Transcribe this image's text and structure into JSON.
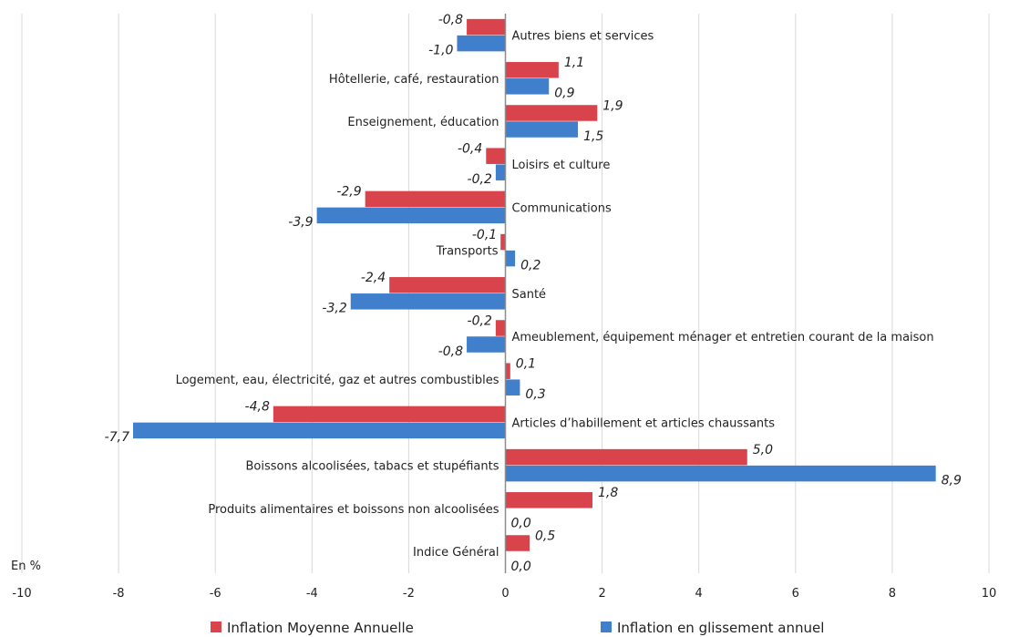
{
  "chart_data": {
    "type": "bar",
    "orientation": "horizontal",
    "unit_label": "En %",
    "xlim": [
      -10,
      10
    ],
    "x_ticks": [
      -10,
      -8,
      -6,
      -4,
      -2,
      0,
      2,
      4,
      6,
      8,
      10
    ],
    "grid": "vertical",
    "legend_position": "bottom",
    "categories": [
      "Autres biens et services",
      "Hôtellerie, café, restauration",
      "Enseignement, éducation",
      "Loisirs et culture",
      "Communications",
      "Transports",
      "Santé",
      "Ameublement, équipement ménager et entretien courant de la maison",
      "Logement, eau, électricité, gaz et autres combustibles",
      "Articles d’habillement et articles chaussants",
      "Boissons alcoolisées, tabacs et stupéfiants",
      "Produits alimentaires et boissons non alcoolisées",
      "Indice Général"
    ],
    "series": [
      {
        "name": "Inflation Moyenne Annuelle",
        "color": "#d9434b",
        "values": [
          -0.8,
          1.1,
          1.9,
          -0.4,
          -2.9,
          -0.1,
          -2.4,
          -0.2,
          0.1,
          -4.8,
          5.0,
          1.8,
          0.5
        ],
        "labels": [
          "-0,8",
          "1,1",
          "1,9",
          "-0,4",
          "-2,9",
          "-0,1",
          "-2,4",
          "-0,2",
          "0,1",
          "-4,8",
          "5,0",
          "1,8",
          "0,5"
        ]
      },
      {
        "name": "Inflation en glissement annuel",
        "color": "#3f7fcb",
        "values": [
          -1.0,
          0.9,
          1.5,
          -0.2,
          -3.9,
          0.2,
          -3.2,
          -0.8,
          0.3,
          -7.7,
          8.9,
          0.0,
          0.0
        ],
        "labels": [
          "-1,0",
          "0,9",
          "1,5",
          "-0,2",
          "-3,9",
          "0,2",
          "-3,2",
          "-0,8",
          "0,3",
          "-7,7",
          "8,9",
          "0,0",
          "0,0"
        ]
      }
    ]
  }
}
